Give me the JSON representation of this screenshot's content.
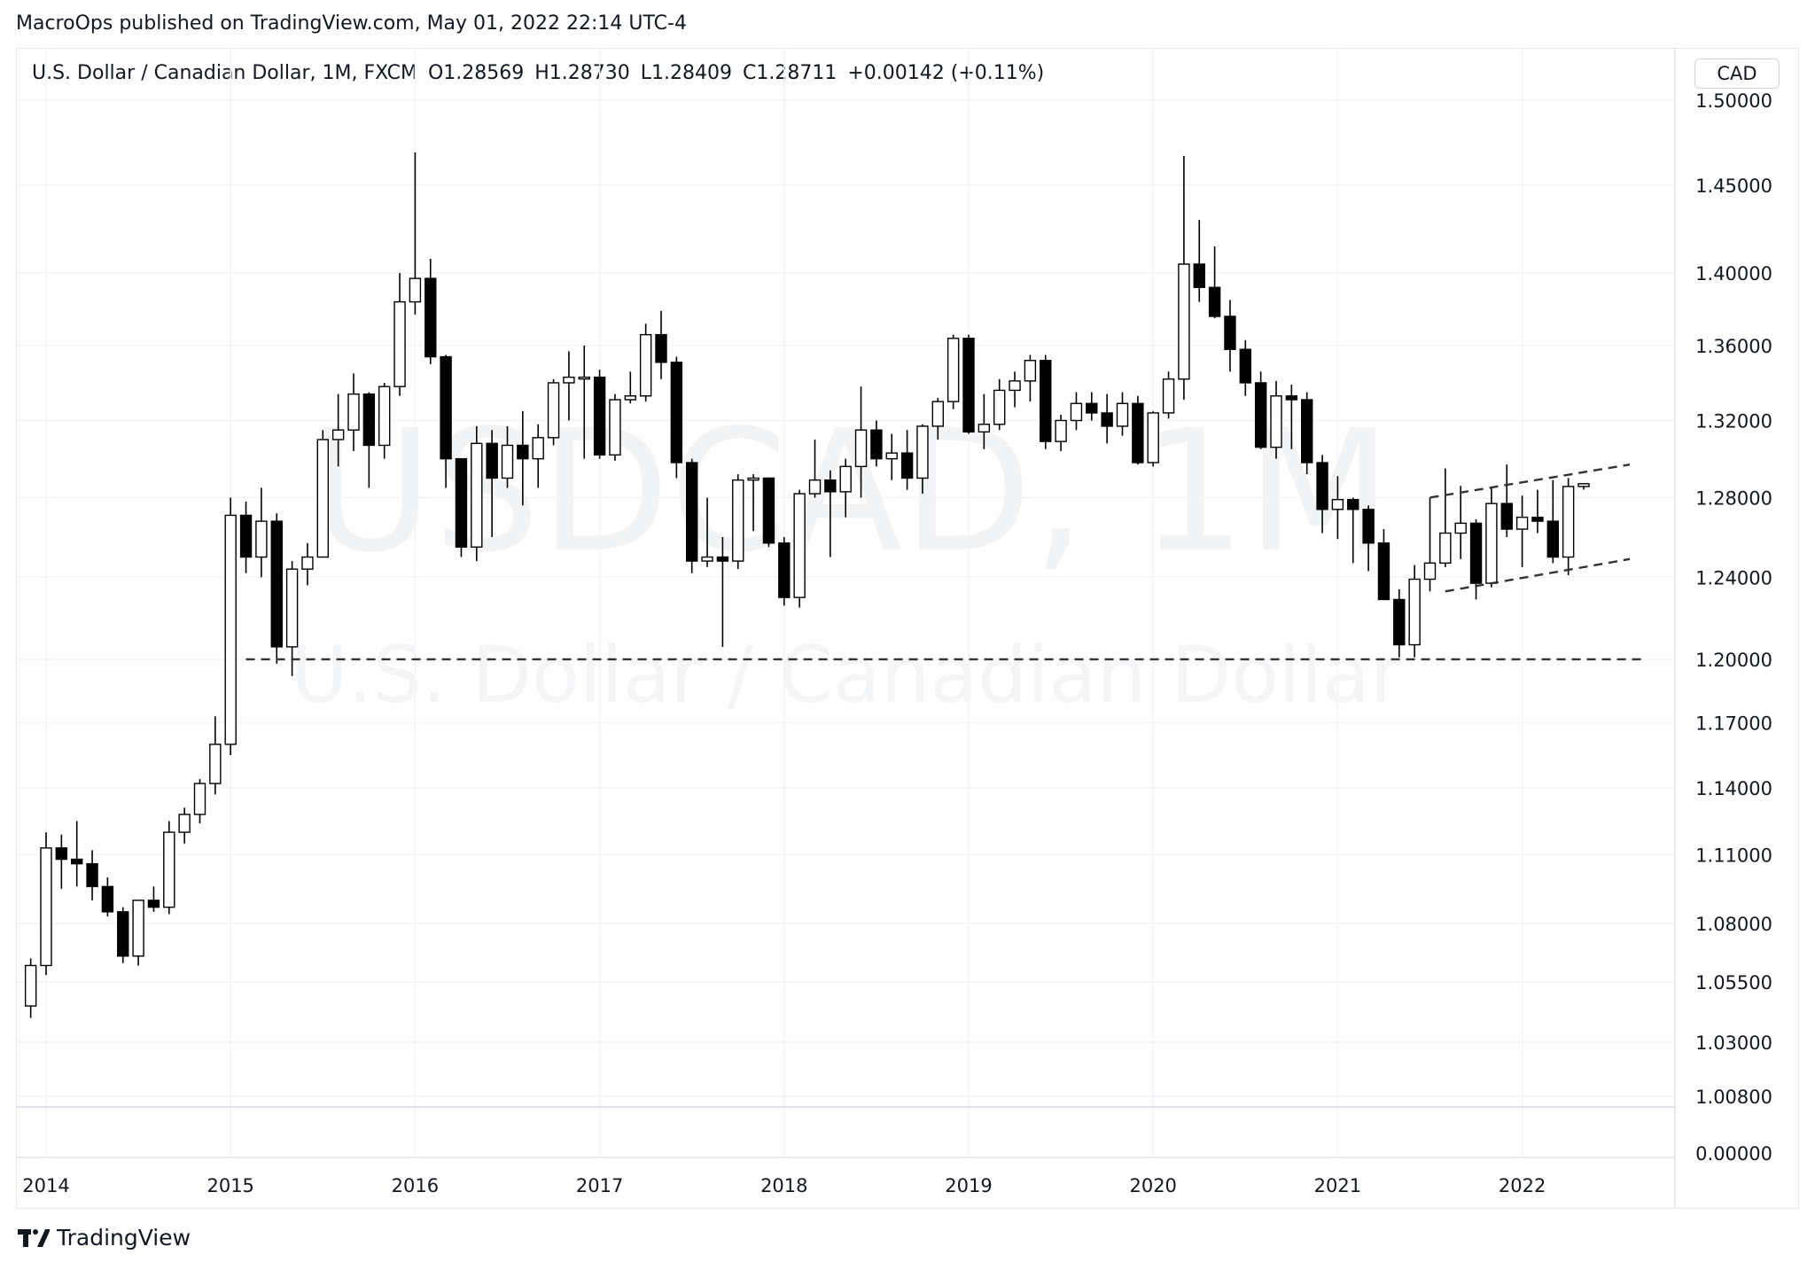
{
  "header": {
    "published_by": "MacroOps published on TradingView.com, May 01, 2022 22:14 UTC-4"
  },
  "legend": {
    "symbol": "U.S. Dollar / Canadian Dollar, 1M, FXCM",
    "open": "O1.28569",
    "high": "H1.28730",
    "low": "L1.28409",
    "close": "C1.28711",
    "change": "+0.00142 (+0.11%)"
  },
  "price_axis": {
    "currency": "CAD",
    "ticks": [
      "1.50000",
      "1.45000",
      "1.40000",
      "1.36000",
      "1.32000",
      "1.28000",
      "1.24000",
      "1.20000",
      "1.17000",
      "1.14000",
      "1.11000",
      "1.08000",
      "1.05500",
      "1.03000",
      "1.00800"
    ],
    "volume_tick": "0.00000"
  },
  "watermark": {
    "symbol": "USDCAD, 1M",
    "name": "U.S. Dollar / Canadian Dollar"
  },
  "footer": {
    "brand": "TradingView"
  },
  "colors": {
    "bull_fill": "#ffffff",
    "bear_fill": "#000000",
    "outline": "#000000",
    "grid": "#f0f3fa",
    "annotation": "#333333"
  },
  "chart_data": {
    "type": "candlestick",
    "scale": "log",
    "ylim": [
      1.008,
      1.5
    ],
    "x_ticks": [
      "2014",
      "2015",
      "2016",
      "2017",
      "2018",
      "2019",
      "2020",
      "2021",
      "2022"
    ],
    "x_tick_years": [
      2014,
      2015,
      2016,
      2017,
      2018,
      2019,
      2020,
      2021,
      2022
    ],
    "candles": [
      {
        "date": "2013-12",
        "o": 1.045,
        "h": 1.065,
        "l": 1.04,
        "c": 1.062
      },
      {
        "date": "2014-01",
        "o": 1.062,
        "h": 1.12,
        "l": 1.058,
        "c": 1.113
      },
      {
        "date": "2014-02",
        "o": 1.113,
        "h": 1.119,
        "l": 1.095,
        "c": 1.108
      },
      {
        "date": "2014-03",
        "o": 1.108,
        "h": 1.125,
        "l": 1.096,
        "c": 1.106
      },
      {
        "date": "2014-04",
        "o": 1.106,
        "h": 1.112,
        "l": 1.09,
        "c": 1.096
      },
      {
        "date": "2014-05",
        "o": 1.096,
        "h": 1.1,
        "l": 1.083,
        "c": 1.085
      },
      {
        "date": "2014-06",
        "o": 1.085,
        "h": 1.087,
        "l": 1.063,
        "c": 1.066
      },
      {
        "date": "2014-07",
        "o": 1.066,
        "h": 1.09,
        "l": 1.062,
        "c": 1.09
      },
      {
        "date": "2014-08",
        "o": 1.09,
        "h": 1.096,
        "l": 1.085,
        "c": 1.087
      },
      {
        "date": "2014-09",
        "o": 1.087,
        "h": 1.125,
        "l": 1.084,
        "c": 1.12
      },
      {
        "date": "2014-10",
        "o": 1.12,
        "h": 1.131,
        "l": 1.115,
        "c": 1.128
      },
      {
        "date": "2014-11",
        "o": 1.128,
        "h": 1.144,
        "l": 1.124,
        "c": 1.142
      },
      {
        "date": "2014-12",
        "o": 1.142,
        "h": 1.173,
        "l": 1.137,
        "c": 1.16
      },
      {
        "date": "2015-01",
        "o": 1.16,
        "h": 1.28,
        "l": 1.155,
        "c": 1.271
      },
      {
        "date": "2015-02",
        "o": 1.271,
        "h": 1.278,
        "l": 1.242,
        "c": 1.25
      },
      {
        "date": "2015-03",
        "o": 1.25,
        "h": 1.285,
        "l": 1.24,
        "c": 1.268
      },
      {
        "date": "2015-04",
        "o": 1.268,
        "h": 1.272,
        "l": 1.198,
        "c": 1.206
      },
      {
        "date": "2015-05",
        "o": 1.206,
        "h": 1.248,
        "l": 1.192,
        "c": 1.244
      },
      {
        "date": "2015-06",
        "o": 1.244,
        "h": 1.257,
        "l": 1.236,
        "c": 1.25
      },
      {
        "date": "2015-07",
        "o": 1.25,
        "h": 1.315,
        "l": 1.25,
        "c": 1.31
      },
      {
        "date": "2015-08",
        "o": 1.31,
        "h": 1.334,
        "l": 1.296,
        "c": 1.315
      },
      {
        "date": "2015-09",
        "o": 1.315,
        "h": 1.345,
        "l": 1.304,
        "c": 1.334
      },
      {
        "date": "2015-10",
        "o": 1.334,
        "h": 1.335,
        "l": 1.285,
        "c": 1.307
      },
      {
        "date": "2015-11",
        "o": 1.307,
        "h": 1.34,
        "l": 1.3,
        "c": 1.338
      },
      {
        "date": "2015-12",
        "o": 1.338,
        "h": 1.4,
        "l": 1.333,
        "c": 1.384
      },
      {
        "date": "2016-01",
        "o": 1.384,
        "h": 1.469,
        "l": 1.377,
        "c": 1.397
      },
      {
        "date": "2016-02",
        "o": 1.397,
        "h": 1.408,
        "l": 1.35,
        "c": 1.354
      },
      {
        "date": "2016-03",
        "o": 1.354,
        "h": 1.355,
        "l": 1.285,
        "c": 1.3
      },
      {
        "date": "2016-04",
        "o": 1.3,
        "h": 1.3,
        "l": 1.25,
        "c": 1.255
      },
      {
        "date": "2016-05",
        "o": 1.255,
        "h": 1.317,
        "l": 1.248,
        "c": 1.308
      },
      {
        "date": "2016-06",
        "o": 1.308,
        "h": 1.315,
        "l": 1.26,
        "c": 1.29
      },
      {
        "date": "2016-07",
        "o": 1.29,
        "h": 1.317,
        "l": 1.285,
        "c": 1.307
      },
      {
        "date": "2016-08",
        "o": 1.307,
        "h": 1.325,
        "l": 1.276,
        "c": 1.3
      },
      {
        "date": "2016-09",
        "o": 1.3,
        "h": 1.318,
        "l": 1.285,
        "c": 1.311
      },
      {
        "date": "2016-10",
        "o": 1.311,
        "h": 1.342,
        "l": 1.307,
        "c": 1.34
      },
      {
        "date": "2016-11",
        "o": 1.34,
        "h": 1.357,
        "l": 1.32,
        "c": 1.343
      },
      {
        "date": "2016-12",
        "o": 1.343,
        "h": 1.36,
        "l": 1.3,
        "c": 1.343
      },
      {
        "date": "2017-01",
        "o": 1.343,
        "h": 1.347,
        "l": 1.3,
        "c": 1.302
      },
      {
        "date": "2017-02",
        "o": 1.302,
        "h": 1.334,
        "l": 1.299,
        "c": 1.331
      },
      {
        "date": "2017-03",
        "o": 1.331,
        "h": 1.346,
        "l": 1.329,
        "c": 1.333
      },
      {
        "date": "2017-04",
        "o": 1.333,
        "h": 1.372,
        "l": 1.33,
        "c": 1.366
      },
      {
        "date": "2017-05",
        "o": 1.366,
        "h": 1.379,
        "l": 1.342,
        "c": 1.351
      },
      {
        "date": "2017-06",
        "o": 1.351,
        "h": 1.354,
        "l": 1.29,
        "c": 1.298
      },
      {
        "date": "2017-07",
        "o": 1.298,
        "h": 1.3,
        "l": 1.242,
        "c": 1.248
      },
      {
        "date": "2017-08",
        "o": 1.248,
        "h": 1.28,
        "l": 1.245,
        "c": 1.25
      },
      {
        "date": "2017-09",
        "o": 1.25,
        "h": 1.26,
        "l": 1.206,
        "c": 1.248
      },
      {
        "date": "2017-10",
        "o": 1.248,
        "h": 1.292,
        "l": 1.244,
        "c": 1.289
      },
      {
        "date": "2017-11",
        "o": 1.289,
        "h": 1.292,
        "l": 1.263,
        "c": 1.29
      },
      {
        "date": "2017-12",
        "o": 1.29,
        "h": 1.29,
        "l": 1.255,
        "c": 1.257
      },
      {
        "date": "2018-01",
        "o": 1.257,
        "h": 1.26,
        "l": 1.226,
        "c": 1.23
      },
      {
        "date": "2018-02",
        "o": 1.23,
        "h": 1.284,
        "l": 1.225,
        "c": 1.282
      },
      {
        "date": "2018-03",
        "o": 1.282,
        "h": 1.31,
        "l": 1.28,
        "c": 1.289
      },
      {
        "date": "2018-04",
        "o": 1.289,
        "h": 1.294,
        "l": 1.25,
        "c": 1.283
      },
      {
        "date": "2018-05",
        "o": 1.283,
        "h": 1.3,
        "l": 1.27,
        "c": 1.296
      },
      {
        "date": "2018-06",
        "o": 1.296,
        "h": 1.338,
        "l": 1.28,
        "c": 1.315
      },
      {
        "date": "2018-07",
        "o": 1.315,
        "h": 1.32,
        "l": 1.296,
        "c": 1.3
      },
      {
        "date": "2018-08",
        "o": 1.3,
        "h": 1.313,
        "l": 1.289,
        "c": 1.303
      },
      {
        "date": "2018-09",
        "o": 1.303,
        "h": 1.315,
        "l": 1.284,
        "c": 1.29
      },
      {
        "date": "2018-10",
        "o": 1.29,
        "h": 1.318,
        "l": 1.282,
        "c": 1.317
      },
      {
        "date": "2018-11",
        "o": 1.317,
        "h": 1.332,
        "l": 1.31,
        "c": 1.33
      },
      {
        "date": "2018-12",
        "o": 1.33,
        "h": 1.366,
        "l": 1.326,
        "c": 1.364
      },
      {
        "date": "2019-01",
        "o": 1.364,
        "h": 1.366,
        "l": 1.313,
        "c": 1.314
      },
      {
        "date": "2019-02",
        "o": 1.314,
        "h": 1.334,
        "l": 1.305,
        "c": 1.318
      },
      {
        "date": "2019-03",
        "o": 1.318,
        "h": 1.342,
        "l": 1.315,
        "c": 1.336
      },
      {
        "date": "2019-04",
        "o": 1.336,
        "h": 1.346,
        "l": 1.327,
        "c": 1.341
      },
      {
        "date": "2019-05",
        "o": 1.341,
        "h": 1.355,
        "l": 1.33,
        "c": 1.352
      },
      {
        "date": "2019-06",
        "o": 1.352,
        "h": 1.355,
        "l": 1.305,
        "c": 1.309
      },
      {
        "date": "2019-07",
        "o": 1.309,
        "h": 1.323,
        "l": 1.304,
        "c": 1.32
      },
      {
        "date": "2019-08",
        "o": 1.32,
        "h": 1.335,
        "l": 1.315,
        "c": 1.329
      },
      {
        "date": "2019-09",
        "o": 1.329,
        "h": 1.335,
        "l": 1.32,
        "c": 1.324
      },
      {
        "date": "2019-10",
        "o": 1.324,
        "h": 1.334,
        "l": 1.308,
        "c": 1.317
      },
      {
        "date": "2019-11",
        "o": 1.317,
        "h": 1.335,
        "l": 1.312,
        "c": 1.329
      },
      {
        "date": "2019-12",
        "o": 1.329,
        "h": 1.333,
        "l": 1.297,
        "c": 1.298
      },
      {
        "date": "2020-01",
        "o": 1.298,
        "h": 1.325,
        "l": 1.296,
        "c": 1.324
      },
      {
        "date": "2020-02",
        "o": 1.324,
        "h": 1.346,
        "l": 1.321,
        "c": 1.342
      },
      {
        "date": "2020-03",
        "o": 1.342,
        "h": 1.467,
        "l": 1.331,
        "c": 1.405
      },
      {
        "date": "2020-04",
        "o": 1.405,
        "h": 1.43,
        "l": 1.384,
        "c": 1.392
      },
      {
        "date": "2020-05",
        "o": 1.392,
        "h": 1.415,
        "l": 1.375,
        "c": 1.376
      },
      {
        "date": "2020-06",
        "o": 1.376,
        "h": 1.385,
        "l": 1.346,
        "c": 1.358
      },
      {
        "date": "2020-07",
        "o": 1.358,
        "h": 1.363,
        "l": 1.333,
        "c": 1.34
      },
      {
        "date": "2020-08",
        "o": 1.34,
        "h": 1.346,
        "l": 1.305,
        "c": 1.306
      },
      {
        "date": "2020-09",
        "o": 1.306,
        "h": 1.341,
        "l": 1.3,
        "c": 1.333
      },
      {
        "date": "2020-10",
        "o": 1.333,
        "h": 1.339,
        "l": 1.305,
        "c": 1.331
      },
      {
        "date": "2020-11",
        "o": 1.331,
        "h": 1.335,
        "l": 1.292,
        "c": 1.298
      },
      {
        "date": "2020-12",
        "o": 1.298,
        "h": 1.302,
        "l": 1.262,
        "c": 1.274
      },
      {
        "date": "2021-01",
        "o": 1.274,
        "h": 1.291,
        "l": 1.259,
        "c": 1.279
      },
      {
        "date": "2021-02",
        "o": 1.279,
        "h": 1.28,
        "l": 1.247,
        "c": 1.274
      },
      {
        "date": "2021-03",
        "o": 1.274,
        "h": 1.276,
        "l": 1.243,
        "c": 1.257
      },
      {
        "date": "2021-04",
        "o": 1.257,
        "h": 1.264,
        "l": 1.229,
        "c": 1.229
      },
      {
        "date": "2021-05",
        "o": 1.229,
        "h": 1.234,
        "l": 1.201,
        "c": 1.207
      },
      {
        "date": "2021-06",
        "o": 1.207,
        "h": 1.246,
        "l": 1.201,
        "c": 1.239
      },
      {
        "date": "2021-07",
        "o": 1.239,
        "h": 1.28,
        "l": 1.233,
        "c": 1.247
      },
      {
        "date": "2021-08",
        "o": 1.247,
        "h": 1.295,
        "l": 1.245,
        "c": 1.262
      },
      {
        "date": "2021-09",
        "o": 1.262,
        "h": 1.286,
        "l": 1.249,
        "c": 1.267
      },
      {
        "date": "2021-10",
        "o": 1.267,
        "h": 1.269,
        "l": 1.229,
        "c": 1.237
      },
      {
        "date": "2021-11",
        "o": 1.237,
        "h": 1.285,
        "l": 1.235,
        "c": 1.277
      },
      {
        "date": "2021-12",
        "o": 1.277,
        "h": 1.297,
        "l": 1.26,
        "c": 1.264
      },
      {
        "date": "2022-01",
        "o": 1.264,
        "h": 1.281,
        "l": 1.245,
        "c": 1.27
      },
      {
        "date": "2022-02",
        "o": 1.27,
        "h": 1.284,
        "l": 1.262,
        "c": 1.268
      },
      {
        "date": "2022-03",
        "o": 1.268,
        "h": 1.289,
        "l": 1.247,
        "c": 1.25
      },
      {
        "date": "2022-04",
        "o": 1.25,
        "h": 1.29,
        "l": 1.241,
        "c": 1.28569
      },
      {
        "date": "2022-05",
        "o": 1.28569,
        "h": 1.2873,
        "l": 1.28409,
        "c": 1.28711
      }
    ],
    "annotations": [
      {
        "type": "horizontal-support",
        "price": 1.2,
        "from": "2015-02",
        "to": "2022-09"
      },
      {
        "type": "channel-upper",
        "from": {
          "date": "2021-07",
          "price": 1.28
        },
        "to": {
          "date": "2022-08",
          "price": 1.297
        }
      },
      {
        "type": "channel-lower",
        "from": {
          "date": "2021-08",
          "price": 1.233
        },
        "to": {
          "date": "2022-08",
          "price": 1.249
        }
      }
    ]
  }
}
